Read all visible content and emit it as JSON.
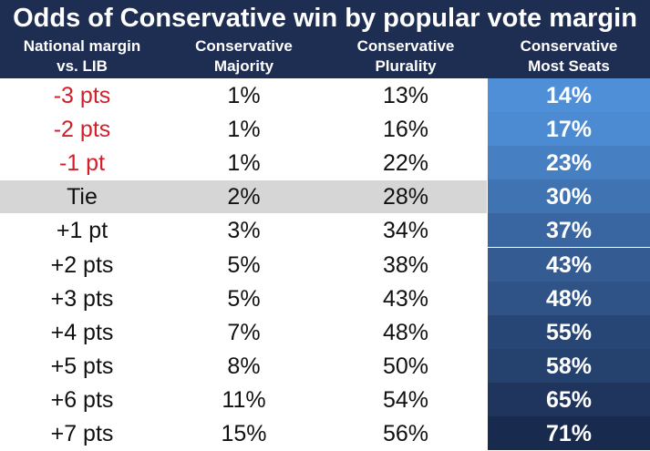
{
  "chart_data": {
    "type": "table",
    "title": "Odds of Conservative win by popular vote margin",
    "columns": [
      "National margin\nvs. LIB",
      "Conservative\nMajority",
      "Conservative\nPlurality",
      "Conservative\nMost Seats"
    ],
    "rows": [
      {
        "margin": "-3 pts",
        "majority": "1%",
        "plurality": "13%",
        "most_seats": "14%",
        "most_seats_value": 14,
        "negative": true
      },
      {
        "margin": "-2 pts",
        "majority": "1%",
        "plurality": "16%",
        "most_seats": "17%",
        "most_seats_value": 17,
        "negative": true
      },
      {
        "margin": "-1 pt",
        "majority": "1%",
        "plurality": "22%",
        "most_seats": "23%",
        "most_seats_value": 23,
        "negative": true
      },
      {
        "margin": "Tie",
        "majority": "2%",
        "plurality": "28%",
        "most_seats": "30%",
        "most_seats_value": 30,
        "highlight": true
      },
      {
        "margin": "+1 pt",
        "majority": "3%",
        "plurality": "34%",
        "most_seats": "37%",
        "most_seats_value": 37
      },
      {
        "margin": "+2 pts",
        "majority": "5%",
        "plurality": "38%",
        "most_seats": "43%",
        "most_seats_value": 43
      },
      {
        "margin": "+3 pts",
        "majority": "5%",
        "plurality": "43%",
        "most_seats": "48%",
        "most_seats_value": 48
      },
      {
        "margin": "+4 pts",
        "majority": "7%",
        "plurality": "48%",
        "most_seats": "55%",
        "most_seats_value": 55
      },
      {
        "margin": "+5 pts",
        "majority": "8%",
        "plurality": "50%",
        "most_seats": "58%",
        "most_seats_value": 58
      },
      {
        "margin": "+6 pts",
        "majority": "11%",
        "plurality": "54%",
        "most_seats": "65%",
        "most_seats_value": 65
      },
      {
        "margin": "+7 pts",
        "majority": "15%",
        "plurality": "56%",
        "most_seats": "71%",
        "most_seats_value": 71
      }
    ]
  },
  "colors": {
    "header_bg": "#1e2d52",
    "negative_text": "#d0212a",
    "tie_highlight": "#d6d6d6",
    "heat_low": "#4f8fd8",
    "heat_high": "#192a4f"
  }
}
